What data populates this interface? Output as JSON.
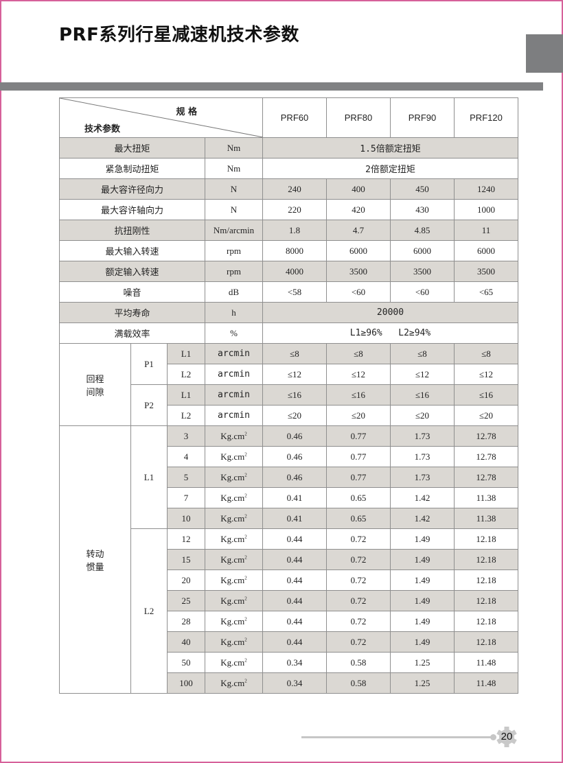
{
  "header": {
    "title": "PRF系列行星减速机技术参数"
  },
  "table": {
    "corner_spec": "规 格",
    "corner_param": "技术参数",
    "models": [
      "PRF60",
      "PRF80",
      "PRF90",
      "PRF120"
    ],
    "simple_rows": [
      {
        "name": "最大扭矩",
        "unit": "Nm",
        "span": "1.5倍额定扭矩",
        "shaded": true
      },
      {
        "name": "紧急制动扭矩",
        "unit": "Nm",
        "span": "2倍额定扭矩",
        "shaded": false
      },
      {
        "name": "最大容许径向力",
        "unit": "N",
        "values": [
          "240",
          "400",
          "450",
          "1240"
        ],
        "shaded": true
      },
      {
        "name": "最大容许轴向力",
        "unit": "N",
        "values": [
          "220",
          "420",
          "430",
          "1000"
        ],
        "shaded": false
      },
      {
        "name": "抗扭刚性",
        "unit": "Nm/arcmin",
        "values": [
          "1.8",
          "4.7",
          "4.85",
          "11"
        ],
        "shaded": true
      },
      {
        "name": "最大输入转速",
        "unit": "rpm",
        "values": [
          "8000",
          "6000",
          "6000",
          "6000"
        ],
        "shaded": false
      },
      {
        "name": "额定输入转速",
        "unit": "rpm",
        "values": [
          "4000",
          "3500",
          "3500",
          "3500"
        ],
        "shaded": true
      },
      {
        "name": "噪音",
        "unit": "dB",
        "values": [
          "<58",
          "<60",
          "<60",
          "<65"
        ],
        "shaded": false
      },
      {
        "name": "平均寿命",
        "unit": "h",
        "span": "20000",
        "shaded": true
      },
      {
        "name": "满载效率",
        "unit": "%",
        "span": "L1≥96%   L2≥94%",
        "shaded": false
      }
    ],
    "backlash": {
      "label": "回程\n间隙",
      "groups": [
        {
          "name": "P1",
          "rows": [
            {
              "stage": "L1",
              "unit": "arcmin",
              "values": [
                "≤8",
                "≤8",
                "≤8",
                "≤8"
              ],
              "shaded": true
            },
            {
              "stage": "L2",
              "unit": "arcmin",
              "values": [
                "≤12",
                "≤12",
                "≤12",
                "≤12"
              ],
              "shaded": false
            }
          ]
        },
        {
          "name": "P2",
          "rows": [
            {
              "stage": "L1",
              "unit": "arcmin",
              "values": [
                "≤16",
                "≤16",
                "≤16",
                "≤16"
              ],
              "shaded": true
            },
            {
              "stage": "L2",
              "unit": "arcmin",
              "values": [
                "≤20",
                "≤20",
                "≤20",
                "≤20"
              ],
              "shaded": false
            }
          ]
        }
      ]
    },
    "inertia": {
      "label": "转动\n惯量",
      "unit": "Kg.cm",
      "unit_sup": "2",
      "groups": [
        {
          "name": "L1",
          "rows": [
            {
              "ratio": "3",
              "values": [
                "0.46",
                "0.77",
                "1.73",
                "12.78"
              ],
              "shaded": true
            },
            {
              "ratio": "4",
              "values": [
                "0.46",
                "0.77",
                "1.73",
                "12.78"
              ],
              "shaded": false
            },
            {
              "ratio": "5",
              "values": [
                "0.46",
                "0.77",
                "1.73",
                "12.78"
              ],
              "shaded": true
            },
            {
              "ratio": "7",
              "values": [
                "0.41",
                "0.65",
                "1.42",
                "11.38"
              ],
              "shaded": false
            },
            {
              "ratio": "10",
              "values": [
                "0.41",
                "0.65",
                "1.42",
                "11.38"
              ],
              "shaded": true
            }
          ]
        },
        {
          "name": "L2",
          "rows": [
            {
              "ratio": "12",
              "values": [
                "0.44",
                "0.72",
                "1.49",
                "12.18"
              ],
              "shaded": false
            },
            {
              "ratio": "15",
              "values": [
                "0.44",
                "0.72",
                "1.49",
                "12.18"
              ],
              "shaded": true
            },
            {
              "ratio": "20",
              "values": [
                "0.44",
                "0.72",
                "1.49",
                "12.18"
              ],
              "shaded": false
            },
            {
              "ratio": "25",
              "values": [
                "0.44",
                "0.72",
                "1.49",
                "12.18"
              ],
              "shaded": true
            },
            {
              "ratio": "28",
              "values": [
                "0.44",
                "0.72",
                "1.49",
                "12.18"
              ],
              "shaded": false
            },
            {
              "ratio": "40",
              "values": [
                "0.44",
                "0.72",
                "1.49",
                "12.18"
              ],
              "shaded": true
            },
            {
              "ratio": "50",
              "values": [
                "0.34",
                "0.58",
                "1.25",
                "11.48"
              ],
              "shaded": false
            },
            {
              "ratio": "100",
              "values": [
                "0.34",
                "0.58",
                "1.25",
                "11.48"
              ],
              "shaded": true
            }
          ]
        }
      ]
    }
  },
  "footer": {
    "page_number": "20"
  },
  "colors": {
    "border": "#d6609a",
    "header_bar": "#808183",
    "row_shade": "#dbd8d3"
  }
}
